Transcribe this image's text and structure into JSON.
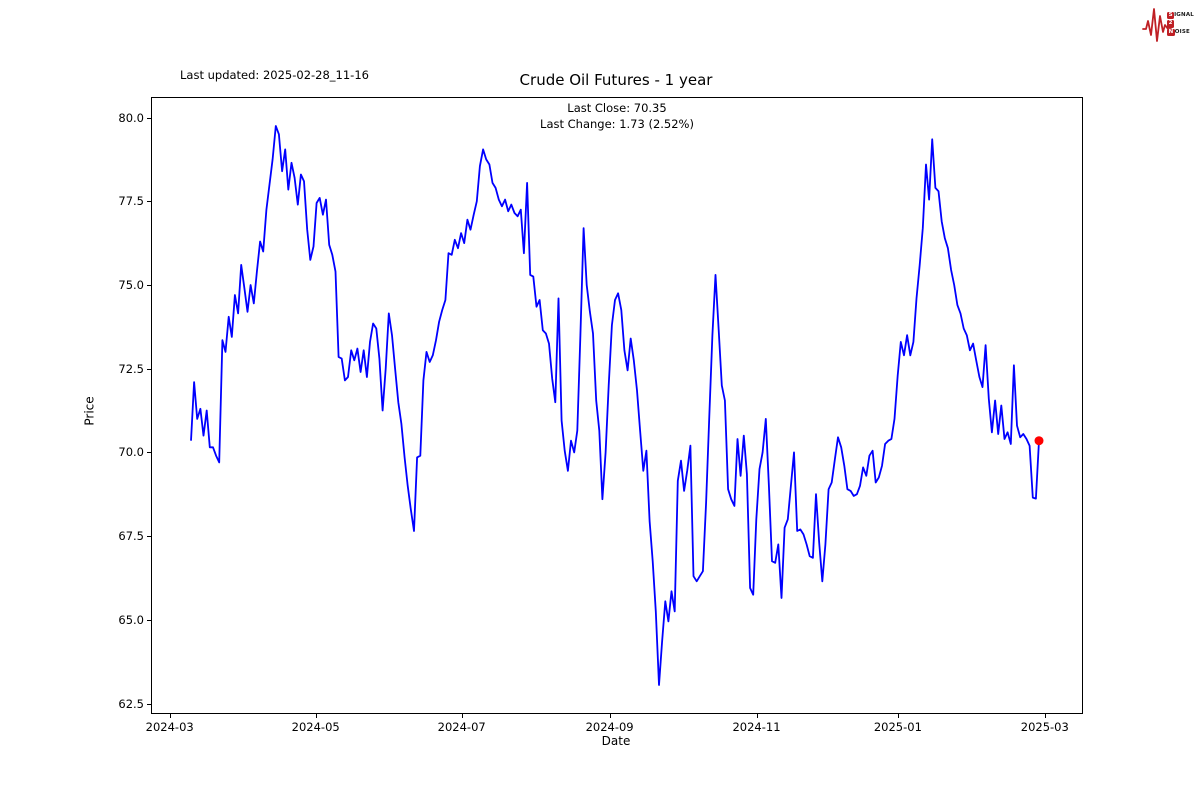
{
  "header": {
    "last_updated": "Last updated: 2025-02-28_11-16"
  },
  "logo": {
    "badge1": "S",
    "rest1": "IGNAL",
    "badge2": "2",
    "badge3": "N",
    "rest3": "OISE",
    "color": "#bf2025"
  },
  "chart_data": {
    "type": "line",
    "title": "Crude Oil Futures - 1 year",
    "annotation_line1": "Last Close: 70.35",
    "annotation_line2": "Last Change: 1.73 (2.52%)",
    "xlabel": "Date",
    "ylabel": "Price",
    "last_close": 70.35,
    "last_change": 1.73,
    "last_change_pct": 2.52,
    "line_color": "#0000ff",
    "marker_color": "#ff0000",
    "grid": false,
    "ylim": [
      62.215,
      80.585
    ],
    "y_ticks": [
      {
        "label": "80.0",
        "value": 80.0
      },
      {
        "label": "77.5",
        "value": 77.5
      },
      {
        "label": "75.0",
        "value": 75.0
      },
      {
        "label": "72.5",
        "value": 72.5
      },
      {
        "label": "70.0",
        "value": 70.0
      },
      {
        "label": "67.5",
        "value": 67.5
      },
      {
        "label": "65.0",
        "value": 65.0
      },
      {
        "label": "62.5",
        "value": 62.5
      }
    ],
    "x_ticks": [
      {
        "label": "2024-03",
        "pos": 0.019
      },
      {
        "label": "2024-05",
        "pos": 0.176
      },
      {
        "label": "2024-07",
        "pos": 0.333
      },
      {
        "label": "2024-09",
        "pos": 0.492
      },
      {
        "label": "2024-11",
        "pos": 0.65
      },
      {
        "label": "2025-01",
        "pos": 0.802
      },
      {
        "label": "2025-03",
        "pos": 0.96
      }
    ],
    "x_start_frac": 0.0419,
    "x_end_frac": 0.9538,
    "series": [
      {
        "name": "Crude Oil Futures close",
        "start_date": "2024-03-11",
        "end_date": "2025-02-28",
        "sampling": "consecutive trading sessions, values approximate (traced from chart)",
        "values": [
          70.35,
          72.1,
          71.0,
          71.3,
          70.5,
          71.25,
          70.15,
          70.15,
          69.9,
          69.7,
          73.35,
          73.0,
          74.05,
          73.45,
          74.7,
          74.15,
          75.6,
          74.9,
          74.2,
          75.0,
          74.45,
          75.4,
          76.3,
          76.0,
          77.25,
          78.0,
          78.75,
          79.75,
          79.5,
          78.4,
          79.05,
          77.85,
          78.65,
          78.2,
          77.4,
          78.3,
          78.1,
          76.65,
          75.75,
          76.15,
          77.45,
          77.6,
          77.1,
          77.55,
          76.2,
          75.9,
          75.4,
          72.85,
          72.8,
          72.15,
          72.25,
          73.05,
          72.75,
          73.1,
          72.4,
          73.05,
          72.25,
          73.3,
          73.85,
          73.7,
          72.8,
          71.25,
          72.5,
          74.15,
          73.5,
          72.5,
          71.5,
          70.85,
          69.85,
          69.0,
          68.3,
          67.65,
          69.85,
          69.9,
          72.15,
          73.0,
          72.7,
          72.9,
          73.35,
          73.9,
          74.25,
          74.55,
          75.95,
          75.9,
          76.35,
          76.1,
          76.55,
          76.25,
          76.95,
          76.65,
          77.1,
          77.5,
          78.55,
          79.05,
          78.75,
          78.6,
          78.05,
          77.9,
          77.55,
          77.35,
          77.55,
          77.2,
          77.4,
          77.15,
          77.05,
          77.25,
          75.95,
          78.05,
          75.3,
          75.25,
          74.35,
          74.55,
          73.65,
          73.55,
          73.25,
          72.2,
          71.5,
          74.6,
          70.95,
          70.05,
          69.45,
          70.35,
          70.0,
          70.65,
          73.5,
          76.7,
          75.0,
          74.2,
          73.55,
          71.55,
          70.65,
          68.6,
          70.0,
          72.0,
          73.8,
          74.55,
          74.75,
          74.25,
          73.05,
          72.45,
          73.4,
          72.75,
          71.85,
          70.65,
          69.45,
          70.05,
          67.95,
          66.75,
          65.25,
          63.05,
          64.35,
          65.55,
          64.95,
          65.85,
          65.25,
          69.15,
          69.75,
          68.85,
          69.45,
          70.2,
          66.3,
          66.15,
          66.3,
          66.45,
          68.5,
          71.0,
          73.5,
          75.3,
          73.65,
          72.0,
          71.55,
          68.9,
          68.6,
          68.4,
          70.4,
          69.3,
          70.5,
          69.35,
          65.95,
          65.75,
          68.0,
          69.5,
          70.0,
          71.0,
          69.0,
          66.75,
          66.7,
          67.25,
          65.65,
          67.75,
          68.0,
          69.0,
          70.0,
          67.65,
          67.7,
          67.55,
          67.25,
          66.9,
          66.85,
          68.75,
          67.3,
          66.15,
          67.25,
          68.9,
          69.1,
          69.8,
          70.45,
          70.15,
          69.6,
          68.9,
          68.85,
          68.7,
          68.75,
          69.0,
          69.55,
          69.3,
          69.9,
          70.05,
          69.1,
          69.25,
          69.6,
          70.25,
          70.35,
          70.4,
          71.0,
          72.3,
          73.3,
          72.9,
          73.5,
          72.9,
          73.3,
          74.6,
          75.6,
          76.7,
          78.6,
          77.55,
          79.35,
          77.9,
          77.8,
          76.9,
          76.4,
          76.1,
          75.45,
          75.0,
          74.4,
          74.15,
          73.7,
          73.5,
          73.05,
          73.25,
          72.75,
          72.25,
          71.95,
          73.2,
          71.6,
          70.6,
          71.55,
          70.55,
          71.4,
          70.4,
          70.6,
          70.25,
          72.6,
          70.8,
          70.45,
          70.55,
          70.4,
          70.2,
          68.65,
          68.62,
          70.35
        ]
      }
    ]
  }
}
